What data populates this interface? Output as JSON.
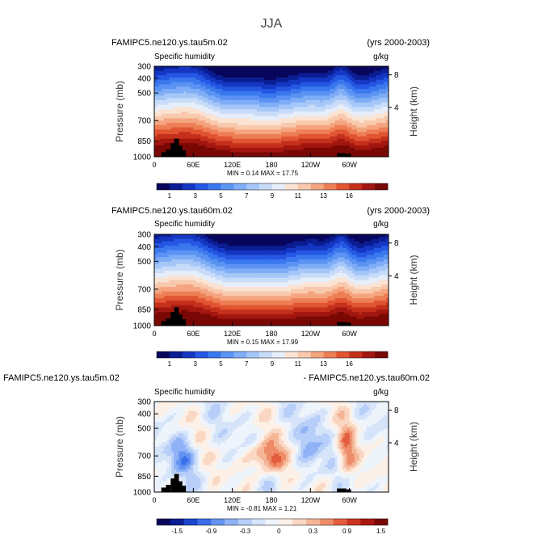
{
  "figure": {
    "title": "JJA"
  },
  "colors": {
    "levels_full": [
      "#08065c",
      "#0b1d93",
      "#1537c3",
      "#2457e3",
      "#3a78ee",
      "#5b93f3",
      "#7fadf6",
      "#a5c7f8",
      "#c8dcf9",
      "#e6eefa",
      "#fae3d3",
      "#f8c9ad",
      "#f4a57f",
      "#ee7e55",
      "#e15532",
      "#c5301c",
      "#a2170f",
      "#7a0805"
    ],
    "levels_diff": [
      "#08065c",
      "#0b1d93",
      "#1b44cc",
      "#3a6fe9",
      "#6493f2",
      "#8fb2f6",
      "#b6cef8",
      "#d6e4fa",
      "#eef4fb",
      "#fdf0e6",
      "#fad7c2",
      "#f5b597",
      "#ee8c69",
      "#e35e3d",
      "#cc3421",
      "#a81710",
      "#7a0805"
    ],
    "terrain": "#000000"
  },
  "chart_data": [
    {
      "type": "heatmap",
      "title": "FAMIPC5.ne120.ys.tau5m.02",
      "period": "(yrs 2000-2003)",
      "variable": "Specific humidity",
      "units": "g/kg",
      "ylabel": "Pressure (mb)",
      "ylabel_right": "Height (km)",
      "x_ticks": [
        "0",
        "60E",
        "120E",
        "180",
        "120W",
        "60W"
      ],
      "y_ticks": [
        "300",
        "400",
        "500",
        "700",
        "850",
        "1000"
      ],
      "y_right_ticks": [
        "8",
        "4"
      ],
      "min_label": "MIN =",
      "min": "0.14",
      "max_label": "MAX =",
      "max": "17.75",
      "colorbar_labels": [
        "1",
        "3",
        "5",
        "7",
        "9",
        "11",
        "13",
        "16"
      ]
    },
    {
      "type": "heatmap",
      "title": "FAMIPC5.ne120.ys.tau60m.02",
      "period": "(yrs 2000-2003)",
      "variable": "Specific humidity",
      "units": "g/kg",
      "ylabel": "Pressure (mb)",
      "ylabel_right": "Height (km)",
      "x_ticks": [
        "0",
        "60E",
        "120E",
        "180",
        "120W",
        "60W"
      ],
      "y_ticks": [
        "300",
        "400",
        "500",
        "700",
        "850",
        "1000"
      ],
      "y_right_ticks": [
        "8",
        "4"
      ],
      "min_label": "MIN =",
      "min": "0.15",
      "max_label": "MAX =",
      "max": "17.99",
      "colorbar_labels": [
        "1",
        "3",
        "5",
        "7",
        "9",
        "11",
        "13",
        "16"
      ]
    },
    {
      "type": "heatmap",
      "title": "FAMIPC5.ne120.ys.tau5m.02",
      "title_right": "- FAMIPC5.ne120.ys.tau60m.02",
      "variable": "Specific humidity",
      "units": "g/kg",
      "ylabel": "Pressure (mb)",
      "ylabel_right": "Height (km)",
      "x_ticks": [
        "0",
        "60E",
        "120E",
        "180",
        "120W",
        "60W"
      ],
      "y_ticks": [
        "300",
        "400",
        "500",
        "700",
        "850",
        "1000"
      ],
      "y_right_ticks": [
        "8",
        "4"
      ],
      "min_label": "MIN =",
      "min": "-0.81",
      "max_label": "MAX =",
      "max": "1.21",
      "colorbar_labels": [
        "-1.5",
        "-0.9",
        "-0.3",
        "0",
        "0.3",
        "0.9",
        "1.5"
      ]
    }
  ]
}
